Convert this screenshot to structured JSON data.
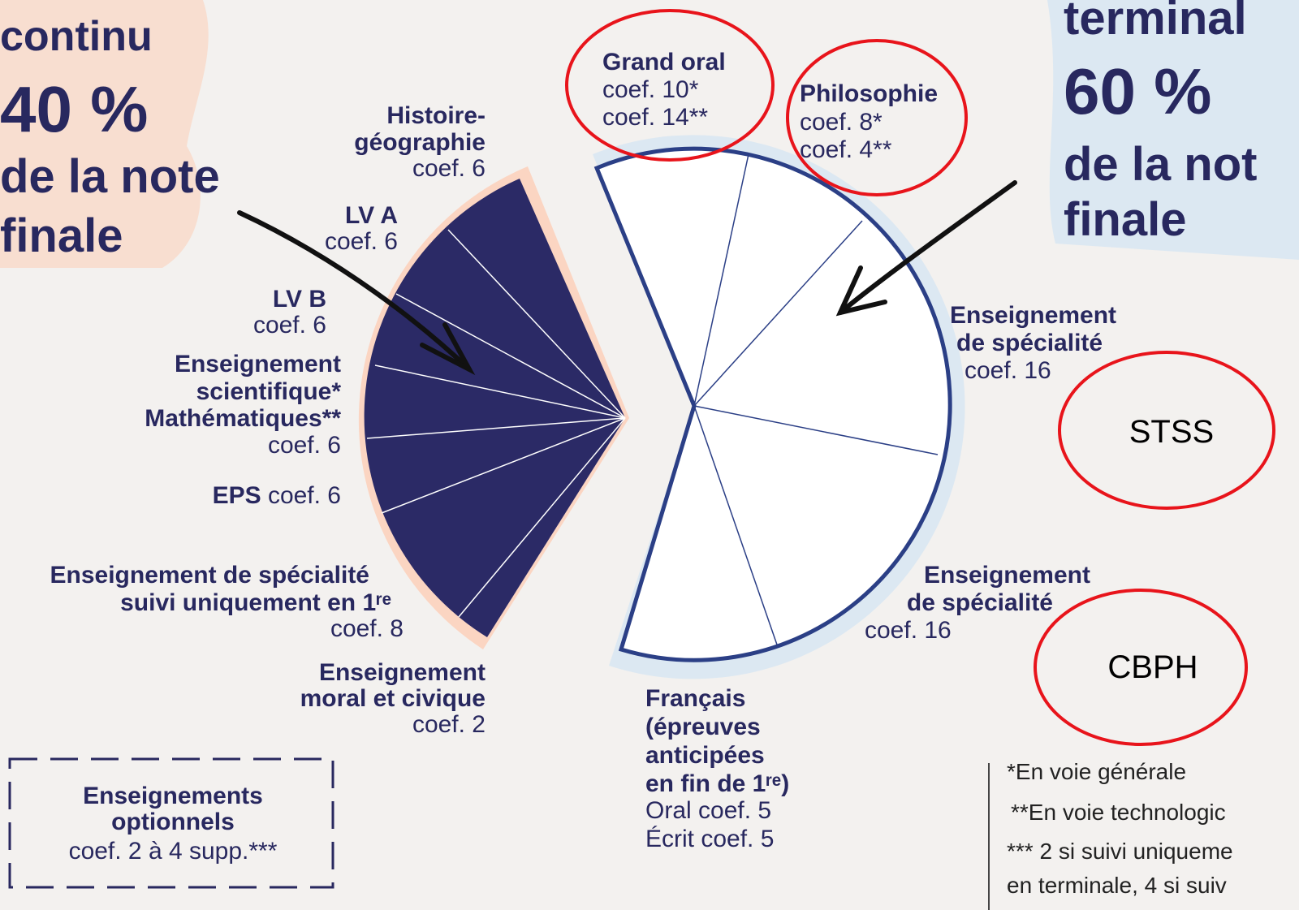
{
  "left_header": {
    "lines": [
      "continu",
      "40 %",
      "de la note",
      "finale"
    ]
  },
  "right_header": {
    "lines": [
      "terminal",
      "60 %",
      "de la not",
      "finale"
    ]
  },
  "left_items": [
    {
      "title": [
        "Histoire-",
        "géographie"
      ],
      "coef": "coef. 6"
    },
    {
      "title": [
        "LV A"
      ],
      "coef": "coef. 6"
    },
    {
      "title": [
        "LV B"
      ],
      "coef": "coef. 6"
    },
    {
      "title": [
        "Enseignement",
        "scientifique*",
        "Mathématiques**"
      ],
      "coef": "coef. 6"
    },
    {
      "title": [
        "EPS"
      ],
      "coef": "coef. 6"
    },
    {
      "title": [
        "Enseignement de spécialité",
        "suivi uniquement en 1ʳᵉ"
      ],
      "coef": "coef. 8"
    },
    {
      "title": [
        "Enseignement",
        "moral et civique"
      ],
      "coef": "coef. 2"
    }
  ],
  "optional_box": {
    "title": [
      "Enseignements",
      "optionnels"
    ],
    "coef": "coef. 2 à 4 supp.***"
  },
  "right_items": [
    {
      "title": [
        "Grand oral"
      ],
      "coef": [
        "coef. 10*",
        "coef. 14**"
      ]
    },
    {
      "title": [
        "Philosophie"
      ],
      "coef": [
        "coef. 8*",
        "coef. 4**"
      ]
    },
    {
      "title": [
        "Enseignement",
        "de spécialité"
      ],
      "coef": [
        "coef. 16"
      ]
    },
    {
      "title": [
        "Enseignement",
        "de spécialité"
      ],
      "coef": [
        "coef. 16"
      ]
    },
    {
      "title": [
        "Français",
        "(épreuves",
        "anticipées",
        "en fin de 1ʳᵉ)"
      ],
      "coef": [
        "Oral coef. 5",
        "Écrit coef. 5"
      ]
    }
  ],
  "footnotes": [
    "*En voie générale",
    "**En voie technologic",
    "*** 2 si suivi uniqueme",
    "en terminale, 4 si suiv"
  ],
  "annotations": [
    "STSS",
    "CBPH"
  ]
}
